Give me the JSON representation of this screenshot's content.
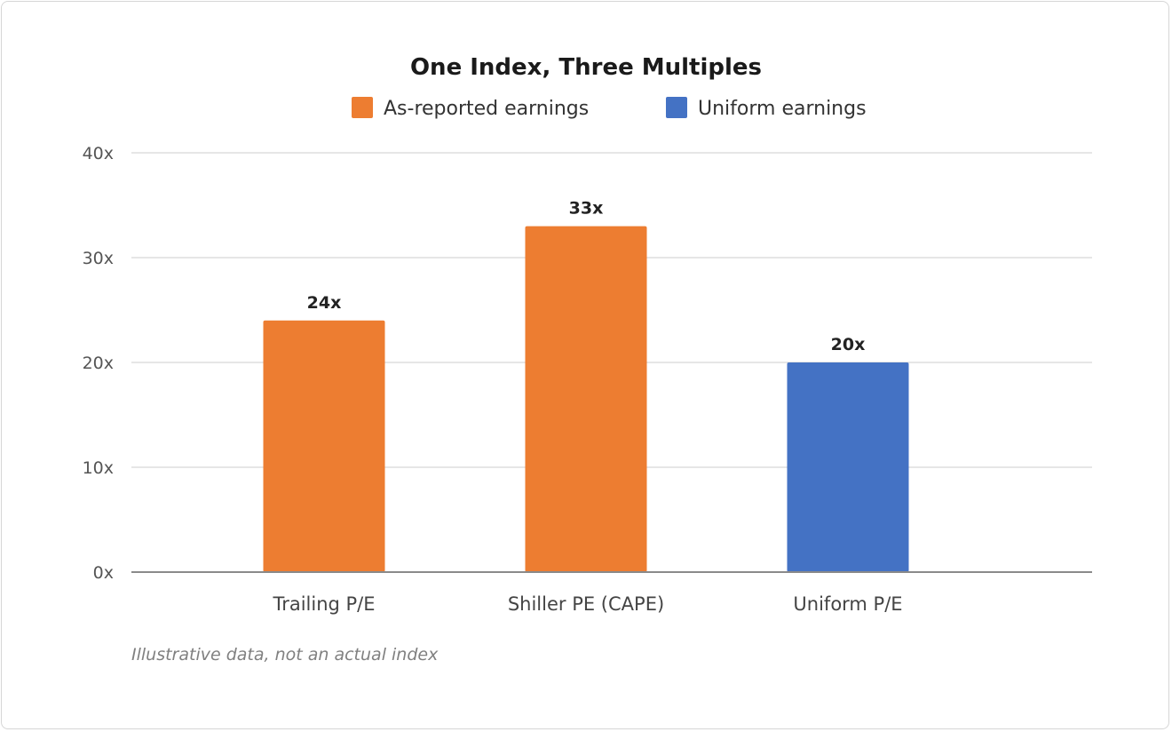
{
  "chart_data": {
    "type": "bar",
    "title": "One Index, Three Multiples",
    "categories": [
      "Trailing P/E",
      "Shiller PE (CAPE)",
      "Uniform P/E"
    ],
    "values": [
      24,
      33,
      20
    ],
    "data_labels": [
      "24x",
      "33x",
      "20x"
    ],
    "bar_groups": [
      "As-reported earnings",
      "As-reported earnings",
      "Uniform earnings"
    ],
    "legend": [
      {
        "name": "As-reported earnings",
        "color": "#ED7D31"
      },
      {
        "name": "Uniform earnings",
        "color": "#4472C4"
      }
    ],
    "legend_position": "top-center",
    "ylim": [
      0,
      40
    ],
    "yticks": [
      0,
      10,
      20,
      30,
      40
    ],
    "ytick_labels": [
      "0x",
      "10x",
      "20x",
      "30x",
      "40x"
    ],
    "xlabel": "",
    "ylabel": "",
    "grid": "horizontal",
    "note": "Illustrative data, not an actual index"
  }
}
